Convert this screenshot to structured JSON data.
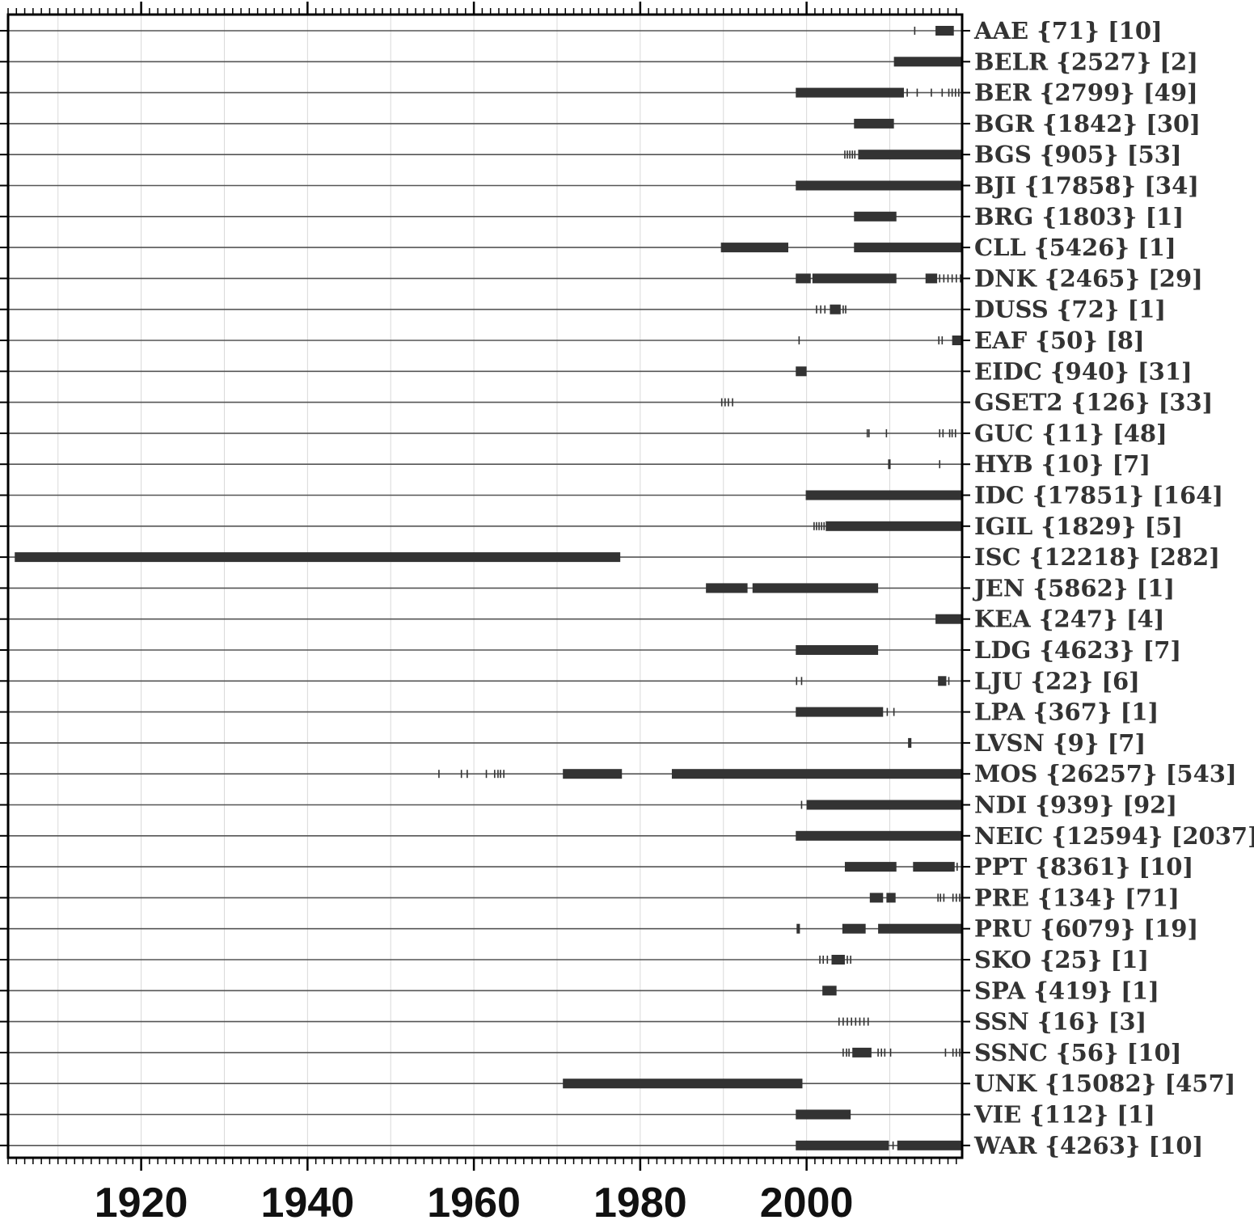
{
  "chart_data": {
    "type": "timeline",
    "title": "",
    "xlabel": "",
    "ylabel": "",
    "xlim": [
      1904,
      2018.7
    ],
    "x_tick_labels": [
      1920,
      1940,
      1960,
      1980,
      2000
    ],
    "major_tick_step": 20,
    "minor_tick_step": 1,
    "grid": {
      "vertical_step": 10,
      "on": true
    },
    "colors": {
      "bars": "#333333",
      "row_line": "#555555",
      "grid": "#d9d9d9",
      "axis": "#000000"
    },
    "rows": [
      {
        "label": "AAE {71} [10]",
        "segments": [
          [
            2015.5,
            2017.7
          ]
        ],
        "ticks": [
          2013.0
        ]
      },
      {
        "label": "BELR {2527} [2]",
        "segments": [
          [
            2010.5,
            2018.7
          ]
        ],
        "ticks": []
      },
      {
        "label": "BER {2799} [49]",
        "segments": [
          [
            1998.7,
            2011.7
          ]
        ],
        "ticks": [
          2012.1,
          2013.3,
          2015.0,
          2016.3,
          2017.1,
          2017.5,
          2017.9,
          2018.3
        ]
      },
      {
        "label": "BGR {1842} [30]",
        "segments": [
          [
            2005.7,
            2010.5
          ]
        ],
        "ticks": []
      },
      {
        "label": "BGS {905} [53]",
        "segments": [
          [
            2006.2,
            2018.7
          ]
        ],
        "ticks": [
          2004.6,
          2004.9,
          2005.2,
          2005.5,
          2005.8
        ]
      },
      {
        "label": "BJI {17858} [34]",
        "segments": [
          [
            1998.7,
            2018.7
          ]
        ],
        "ticks": []
      },
      {
        "label": "BRG {1803} [1]",
        "segments": [
          [
            2005.7,
            2010.8
          ]
        ],
        "ticks": []
      },
      {
        "label": "CLL {5426} [1]",
        "segments": [
          [
            1989.7,
            1997.8
          ],
          [
            2005.7,
            2018.7
          ]
        ],
        "ticks": []
      },
      {
        "label": "DNK {2465} [29]",
        "segments": [
          [
            1998.7,
            2000.5
          ],
          [
            2000.7,
            2010.8
          ],
          [
            2014.3,
            2015.7
          ]
        ],
        "ticks": [
          2016.0,
          2016.5,
          2017.0,
          2017.5,
          2018.0,
          2018.5
        ]
      },
      {
        "label": "DUSS {72} [1]",
        "segments": [
          [
            2002.8,
            2004.1
          ]
        ],
        "ticks": [
          2001.2,
          2001.7,
          2002.2,
          2004.4,
          2004.7
        ]
      },
      {
        "label": "EAF {50} [8]",
        "segments": [
          [
            2017.5,
            2018.7
          ]
        ],
        "ticks": [
          1999.1,
          2015.9,
          2016.3
        ]
      },
      {
        "label": "EIDC {940} [31]",
        "segments": [
          [
            1998.7,
            2000.0
          ]
        ],
        "ticks": []
      },
      {
        "label": "GSET2 {126} [33]",
        "segments": [],
        "ticks": [
          1989.8,
          1990.2,
          1990.6,
          1991.1
        ]
      },
      {
        "label": "GUC {11} [48]",
        "segments": [],
        "ticks": [
          2007.3,
          2007.5,
          2009.6,
          2016.0,
          2016.4,
          2017.2,
          2017.5,
          2017.9
        ]
      },
      {
        "label": "HYB {10} [7]",
        "segments": [
          [
            2009.8,
            2010.1
          ]
        ],
        "ticks": [
          2016.0
        ]
      },
      {
        "label": "IDC {17851} [164]",
        "segments": [
          [
            1999.9,
            2018.7
          ]
        ],
        "ticks": []
      },
      {
        "label": "IGIL {1829} [5]",
        "segments": [
          [
            2002.3,
            2018.7
          ]
        ],
        "ticks": [
          2000.9,
          2001.2,
          2001.5,
          2001.8,
          2002.1
        ]
      },
      {
        "label": "ISC {12218} [282]",
        "segments": [
          [
            1904.8,
            1977.6
          ]
        ],
        "ticks": []
      },
      {
        "label": "JEN {5862} [1]",
        "segments": [
          [
            1987.9,
            1992.9
          ],
          [
            1993.5,
            2008.6
          ]
        ],
        "ticks": []
      },
      {
        "label": "KEA {247} [4]",
        "segments": [
          [
            2015.5,
            2018.7
          ]
        ],
        "ticks": []
      },
      {
        "label": "LDG {4623} [7]",
        "segments": [
          [
            1998.7,
            2008.6
          ]
        ],
        "ticks": []
      },
      {
        "label": "LJU {22} [6]",
        "segments": [
          [
            2015.8,
            2016.8
          ]
        ],
        "ticks": [
          1998.8,
          1999.4,
          2017.1
        ]
      },
      {
        "label": "LPA {367} [1]",
        "segments": [
          [
            1998.7,
            2009.2
          ]
        ],
        "ticks": [
          2009.7,
          2010.5
        ]
      },
      {
        "label": "LVSN {9} [7]",
        "segments": [
          [
            2012.2,
            2012.6
          ]
        ],
        "ticks": []
      },
      {
        "label": "MOS {26257} [543]",
        "segments": [
          [
            1970.7,
            1977.8
          ],
          [
            1983.8,
            2018.7
          ]
        ],
        "ticks": [
          1955.8,
          1958.5,
          1959.2,
          1961.5,
          1962.5,
          1962.9,
          1963.2,
          1963.6
        ]
      },
      {
        "label": "NDI {939} [92]",
        "segments": [
          [
            2000.0,
            2018.7
          ]
        ],
        "ticks": [
          1999.4
        ]
      },
      {
        "label": "NEIC {12594} [2037]",
        "segments": [
          [
            1998.7,
            2018.7
          ]
        ],
        "ticks": []
      },
      {
        "label": "PPT {8361} [10]",
        "segments": [
          [
            2004.6,
            2010.8
          ],
          [
            2012.8,
            2017.8
          ]
        ],
        "ticks": [
          2018.1
        ]
      },
      {
        "label": "PRE {134} [71]",
        "segments": [
          [
            2007.6,
            2009.2
          ],
          [
            2009.6,
            2010.7
          ]
        ],
        "ticks": [
          2015.8,
          2016.1,
          2016.5,
          2017.6,
          2018.0,
          2018.4
        ]
      },
      {
        "label": "PRU {6079} [19]",
        "segments": [
          [
            1998.8,
            1999.2
          ],
          [
            2004.3,
            2007.1
          ],
          [
            2008.6,
            2018.7
          ]
        ],
        "ticks": []
      },
      {
        "label": "SKO {25} [1]",
        "segments": [
          [
            2003.0,
            2004.6
          ]
        ],
        "ticks": [
          2001.6,
          2002.0,
          2002.5,
          2004.9,
          2005.3
        ]
      },
      {
        "label": "SPA {419} [1]",
        "segments": [
          [
            2001.9,
            2003.6
          ]
        ],
        "ticks": []
      },
      {
        "label": "SSN {16} [3]",
        "segments": [],
        "ticks": [
          2003.9,
          2004.4,
          2004.9,
          2005.4,
          2005.9,
          2006.4,
          2006.9,
          2007.4
        ]
      },
      {
        "label": "SSNC {56} [10]",
        "segments": [
          [
            2005.5,
            2007.8
          ]
        ],
        "ticks": [
          2004.4,
          2004.8,
          2005.1,
          2008.6,
          2009.0,
          2009.4,
          2010.1,
          2016.7,
          2017.6,
          2018.0,
          2018.4
        ]
      },
      {
        "label": "UNK {15082} [457]",
        "segments": [
          [
            1970.7,
            1999.5
          ]
        ],
        "ticks": []
      },
      {
        "label": "VIE {112} [1]",
        "segments": [
          [
            1998.7,
            2005.3
          ]
        ],
        "ticks": []
      },
      {
        "label": "WAR {4263} [10]",
        "segments": [
          [
            1998.7,
            2009.9
          ],
          [
            2010.9,
            2018.7
          ]
        ],
        "ticks": [
          2010.4
        ]
      }
    ]
  }
}
